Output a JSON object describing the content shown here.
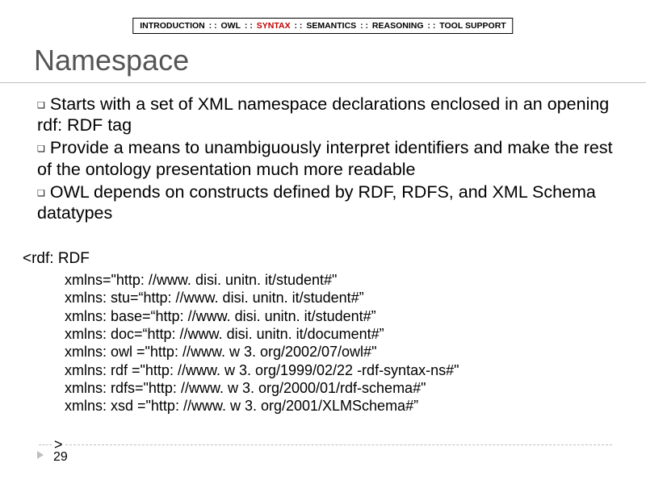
{
  "nav": {
    "items": [
      "INTRODUCTION",
      "OWL",
      "SYNTAX",
      "SEMANTICS",
      "REASONING",
      "TOOL SUPPORT"
    ],
    "separator": " : : ",
    "active_index": 2,
    "active_color": "#c00000"
  },
  "title": "Namespace",
  "title_color": "#555555",
  "underline_color": "#bfbfbf",
  "bullet_marker": "❑",
  "bullets": [
    "Starts with a set of XML namespace declarations enclosed in an opening rdf: RDF tag",
    "Provide a means to unambiguously interpret identifiers and make the rest of the ontology presentation much more readable",
    "OWL depends on constructs defined by RDF, RDFS, and XML Schema datatypes"
  ],
  "code": {
    "open": "<rdf: RDF",
    "lines": [
      "xmlns=\"http: //www. disi. unitn. it/student#\"",
      "xmlns: stu=“http: //www. disi. unitn. it/student#”",
      "xmlns: base=“http: //www. disi. unitn. it/student#”",
      "xmlns: doc=“http: //www. disi. unitn. it/document#”",
      "xmlns: owl =\"http: //www. w 3. org/2002/07/owl#\"",
      "xmlns: rdf =\"http: //www. w 3. org/1999/02/22 -rdf-syntax-ns#\"",
      "xmlns: rdfs=\"http: //www. w 3. org/2000/01/rdf-schema#\"",
      "xmlns: xsd =\"http: //www. w 3. org/2001/XLMSchema#”"
    ],
    "close": ">"
  },
  "page_number": "29",
  "colors": {
    "background": "#ffffff",
    "text": "#000000"
  },
  "bullet_fontsize": 21.5,
  "code_fontsize": 18,
  "indent_text": "        "
}
